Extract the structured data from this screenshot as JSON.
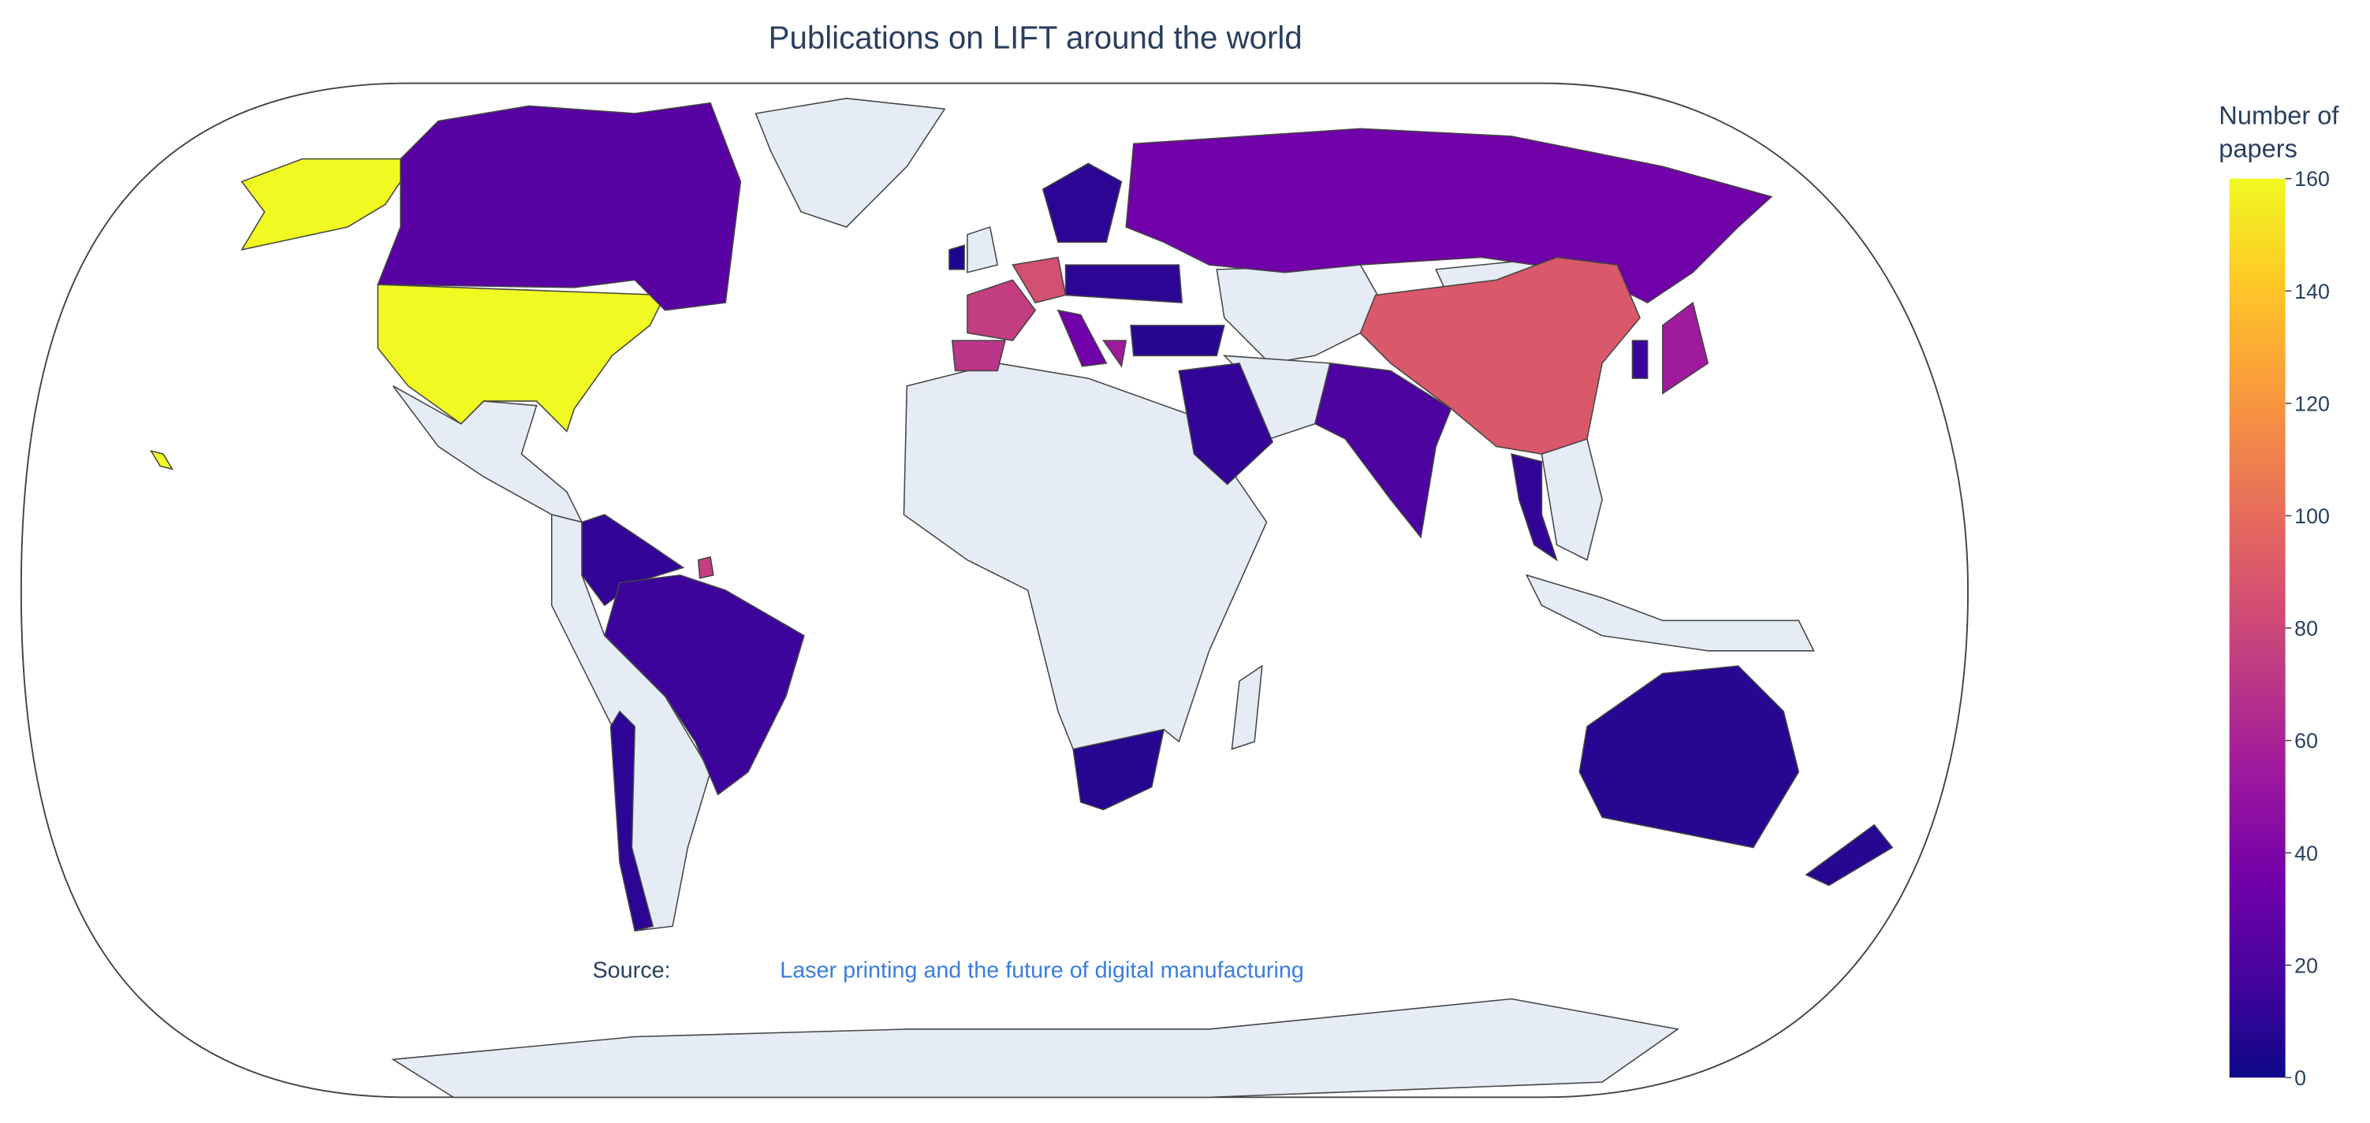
{
  "chart_data": {
    "type": "choropleth",
    "title": "Publications on LIFT around the world",
    "colorbar_title": "Number of papers",
    "zlim": [
      0,
      160
    ],
    "zticks": [
      0,
      20,
      40,
      60,
      80,
      100,
      120,
      140,
      160
    ],
    "colorscale": [
      "#0d0887",
      "#46039f",
      "#7201a8",
      "#9c179e",
      "#bd3786",
      "#d8576b",
      "#ed7953",
      "#fb9f3a",
      "#fdca26",
      "#f0f921"
    ],
    "values": [
      160,
      25,
      12,
      15,
      10,
      8,
      75,
      70,
      85,
      35,
      10,
      10,
      55,
      8,
      35,
      12,
      90,
      55,
      15,
      20,
      12,
      8,
      8,
      5
    ]
  },
  "source": {
    "label": "Source:",
    "link": "Laser printing and the future of digital manufacturing"
  }
}
